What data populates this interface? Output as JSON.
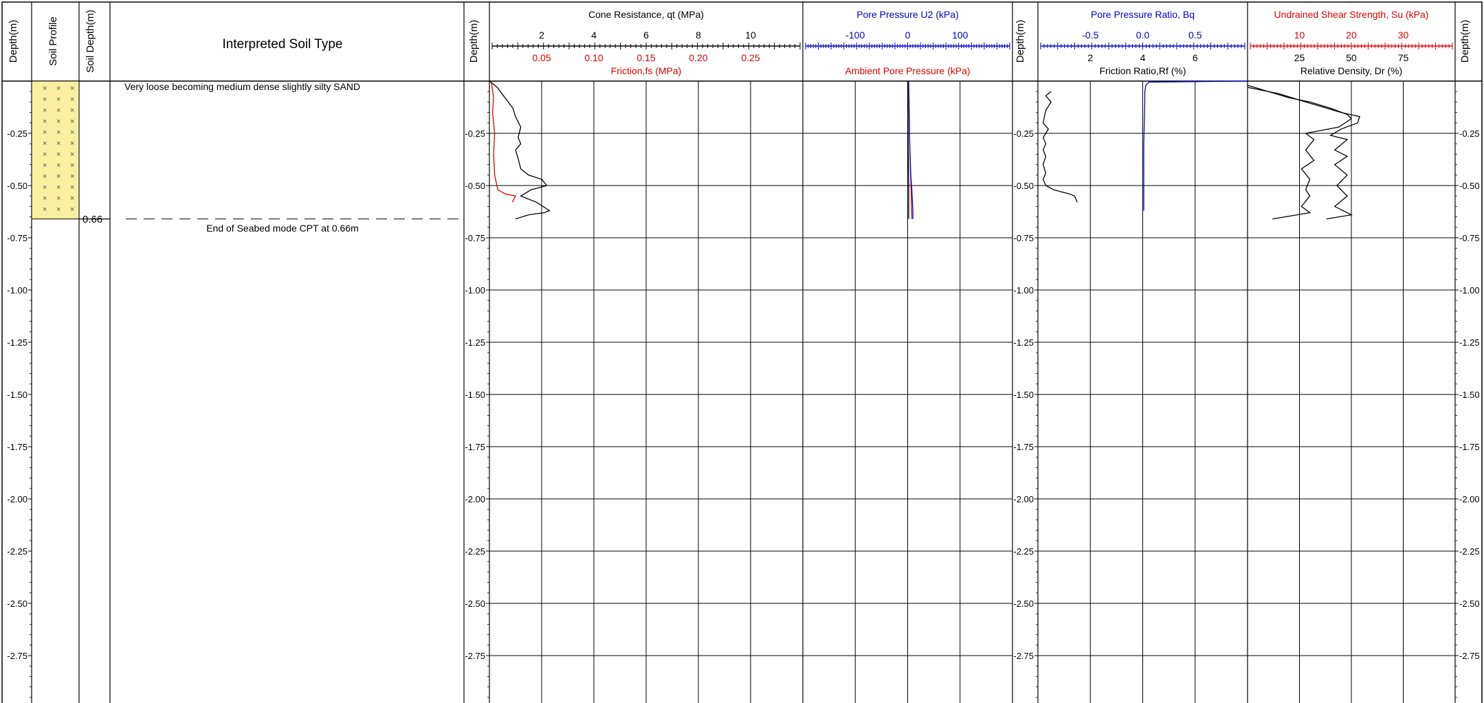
{
  "headers": {
    "depth": "Depth(m)",
    "soil_profile": "Soil Profile",
    "soil_depth": "Soil Depth(m)",
    "interpreted": "Interpreted Soil Type"
  },
  "soil": {
    "layer_description": "Very loose becoming medium dense slightly silty SAND",
    "layer_bottom": 0.66,
    "layer_bottom_label": "0.66",
    "fill_color": "#f8f0a0",
    "end_note": "End of Seabed mode CPT at 0.66m"
  },
  "colors": {
    "black": "#000000",
    "red": "#e00000",
    "blue": "#0000cc"
  },
  "chart_data": {
    "type": "line",
    "depth_axis": {
      "label": "Depth(m)",
      "range": [
        0,
        2.98
      ],
      "ticks": [
        "-0.25",
        "-0.50",
        "-0.75",
        "-1.00",
        "-1.25",
        "-1.50",
        "-1.75",
        "-2.00",
        "-2.25",
        "-2.50",
        "-2.75"
      ],
      "tick_values": [
        0.25,
        0.5,
        0.75,
        1.0,
        1.25,
        1.5,
        1.75,
        2.0,
        2.25,
        2.5,
        2.75
      ]
    },
    "panels": [
      {
        "id": "cone",
        "axes": [
          {
            "title": "Cone Resistance, qt (MPa)",
            "color": "black",
            "range": [
              0,
              12
            ],
            "tick_labels": [
              "2",
              "4",
              "6",
              "8",
              "10"
            ],
            "tick_values": [
              2,
              4,
              6,
              8,
              10
            ],
            "position": "top"
          },
          {
            "title": "Friction,fs (MPa)",
            "color": "red",
            "range": [
              0,
              0.3
            ],
            "tick_labels": [
              "0.05",
              "0.10",
              "0.15",
              "0.20",
              "0.25"
            ],
            "tick_values": [
              0.05,
              0.1,
              0.15,
              0.2,
              0.25
            ],
            "position": "bottom"
          }
        ],
        "series": [
          {
            "color": "black",
            "axis": 0,
            "points": [
              [
                0.0,
                0.0
              ],
              [
                0.3,
                0.03
              ],
              [
                0.6,
                0.08
              ],
              [
                0.9,
                0.13
              ],
              [
                1.0,
                0.17
              ],
              [
                1.2,
                0.22
              ],
              [
                1.1,
                0.27
              ],
              [
                1.2,
                0.3
              ],
              [
                1.0,
                0.33
              ],
              [
                1.1,
                0.37
              ],
              [
                1.2,
                0.42
              ],
              [
                1.5,
                0.45
              ],
              [
                2.0,
                0.47
              ],
              [
                2.2,
                0.5
              ],
              [
                1.6,
                0.52
              ],
              [
                1.2,
                0.55
              ],
              [
                1.8,
                0.58
              ],
              [
                2.3,
                0.62
              ],
              [
                2.1,
                0.63
              ],
              [
                1.5,
                0.64
              ],
              [
                1.0,
                0.66
              ]
            ]
          },
          {
            "color": "red",
            "axis": 1,
            "points": [
              [
                0.002,
                0.01
              ],
              [
                0.004,
                0.08
              ],
              [
                0.003,
                0.15
              ],
              [
                0.005,
                0.25
              ],
              [
                0.004,
                0.35
              ],
              [
                0.005,
                0.45
              ],
              [
                0.008,
                0.52
              ],
              [
                0.015,
                0.54
              ],
              [
                0.025,
                0.55
              ],
              [
                0.022,
                0.58
              ]
            ]
          }
        ]
      },
      {
        "id": "pore",
        "axes": [
          {
            "title": "Pore Pressure U2 (kPa)",
            "color": "blue",
            "range": [
              -200,
              200
            ],
            "tick_labels": [
              "-100",
              "0",
              "100"
            ],
            "tick_values": [
              -100,
              0,
              100
            ],
            "position": "top"
          },
          {
            "title": "Ambient Pore Pressure (kPa)",
            "color": "red",
            "range": [
              -200,
              200
            ],
            "tick_labels": [],
            "tick_values": [],
            "position": "bottom"
          }
        ],
        "series": [
          {
            "color": "red",
            "axis": 1,
            "points": [
              [
                1,
                0.0
              ],
              [
                3,
                0.2
              ],
              [
                5,
                0.4
              ],
              [
                7,
                0.55
              ],
              [
                8,
                0.66
              ]
            ]
          },
          {
            "color": "blue",
            "axis": 0,
            "points": [
              [
                2,
                0.0
              ],
              [
                3,
                0.15
              ],
              [
                4,
                0.3
              ],
              [
                6,
                0.45
              ],
              [
                8,
                0.52
              ],
              [
                9,
                0.58
              ],
              [
                10,
                0.62
              ],
              [
                10,
                0.66
              ]
            ]
          },
          {
            "color": "black",
            "axis": 0,
            "points": [
              [
                0,
                0.0
              ],
              [
                1,
                0.3
              ],
              [
                2,
                0.5
              ],
              [
                2,
                0.66
              ]
            ]
          }
        ]
      },
      {
        "id": "ratio",
        "axes": [
          {
            "title": "Pore Pressure Ratio, Bq",
            "color": "blue",
            "range": [
              -1,
              1
            ],
            "tick_labels": [
              "-0.5",
              "0.0",
              "0.5"
            ],
            "tick_values": [
              -0.5,
              0,
              0.5
            ],
            "position": "top"
          },
          {
            "title": "Friction Ratio,Rf (%)",
            "color": "black",
            "range": [
              0,
              8
            ],
            "tick_labels": [
              "2",
              "4",
              "6"
            ],
            "tick_values": [
              2,
              4,
              6
            ],
            "position": "bottom"
          }
        ],
        "series": [
          {
            "color": "black",
            "axis": 1,
            "points": [
              [
                0.5,
                0.05
              ],
              [
                0.3,
                0.07
              ],
              [
                0.5,
                0.1
              ],
              [
                0.3,
                0.14
              ],
              [
                0.2,
                0.2
              ],
              [
                0.4,
                0.23
              ],
              [
                0.2,
                0.27
              ],
              [
                0.3,
                0.3
              ],
              [
                0.2,
                0.33
              ],
              [
                0.3,
                0.36
              ],
              [
                0.2,
                0.4
              ],
              [
                0.3,
                0.44
              ],
              [
                0.2,
                0.47
              ],
              [
                0.3,
                0.5
              ],
              [
                0.6,
                0.52
              ],
              [
                1.2,
                0.54
              ],
              [
                1.4,
                0.55
              ],
              [
                1.5,
                0.58
              ]
            ]
          },
          {
            "color": "blue",
            "axis": 0,
            "points": [
              [
                1.0,
                0.0
              ],
              [
                0.06,
                0.005
              ],
              [
                0.03,
                0.02
              ],
              [
                0.02,
                0.05
              ],
              [
                0.02,
                0.1
              ],
              [
                0.01,
                0.3
              ],
              [
                0.01,
                0.5
              ],
              [
                0.01,
                0.62
              ]
            ]
          }
        ]
      },
      {
        "id": "strength",
        "axes": [
          {
            "title": "Undrained Shear Strength, Su (kPa)",
            "color": "red",
            "range": [
              0,
              40
            ],
            "tick_labels": [
              "10",
              "20",
              "30"
            ],
            "tick_values": [
              10,
              20,
              30
            ],
            "position": "top"
          },
          {
            "title": "Relative Density, Dr (%)",
            "color": "black",
            "range": [
              0,
              100
            ],
            "tick_labels": [
              "25",
              "50",
              "75"
            ],
            "tick_values": [
              25,
              50,
              75
            ],
            "position": "bottom"
          }
        ],
        "series": [
          {
            "color": "black",
            "axis": 1,
            "points": [
              [
                0,
                0.02
              ],
              [
                10,
                0.05
              ],
              [
                20,
                0.08
              ],
              [
                30,
                0.1
              ],
              [
                40,
                0.13
              ],
              [
                48,
                0.16
              ],
              [
                50,
                0.18
              ],
              [
                44,
                0.22
              ],
              [
                28,
                0.25
              ],
              [
                32,
                0.28
              ],
              [
                28,
                0.33
              ],
              [
                32,
                0.38
              ],
              [
                26,
                0.42
              ],
              [
                30,
                0.47
              ],
              [
                28,
                0.52
              ],
              [
                30,
                0.55
              ],
              [
                26,
                0.6
              ],
              [
                30,
                0.63
              ],
              [
                18,
                0.65
              ],
              [
                12,
                0.66
              ]
            ]
          },
          {
            "color": "black",
            "axis": 1,
            "points": [
              [
                0,
                0.03
              ],
              [
                15,
                0.06
              ],
              [
                28,
                0.1
              ],
              [
                45,
                0.15
              ],
              [
                54,
                0.17
              ],
              [
                53,
                0.2
              ],
              [
                45,
                0.23
              ],
              [
                40,
                0.26
              ],
              [
                48,
                0.28
              ],
              [
                42,
                0.33
              ],
              [
                48,
                0.36
              ],
              [
                42,
                0.4
              ],
              [
                48,
                0.45
              ],
              [
                43,
                0.5
              ],
              [
                48,
                0.55
              ],
              [
                42,
                0.6
              ],
              [
                50,
                0.64
              ],
              [
                38,
                0.66
              ]
            ]
          }
        ]
      }
    ]
  }
}
